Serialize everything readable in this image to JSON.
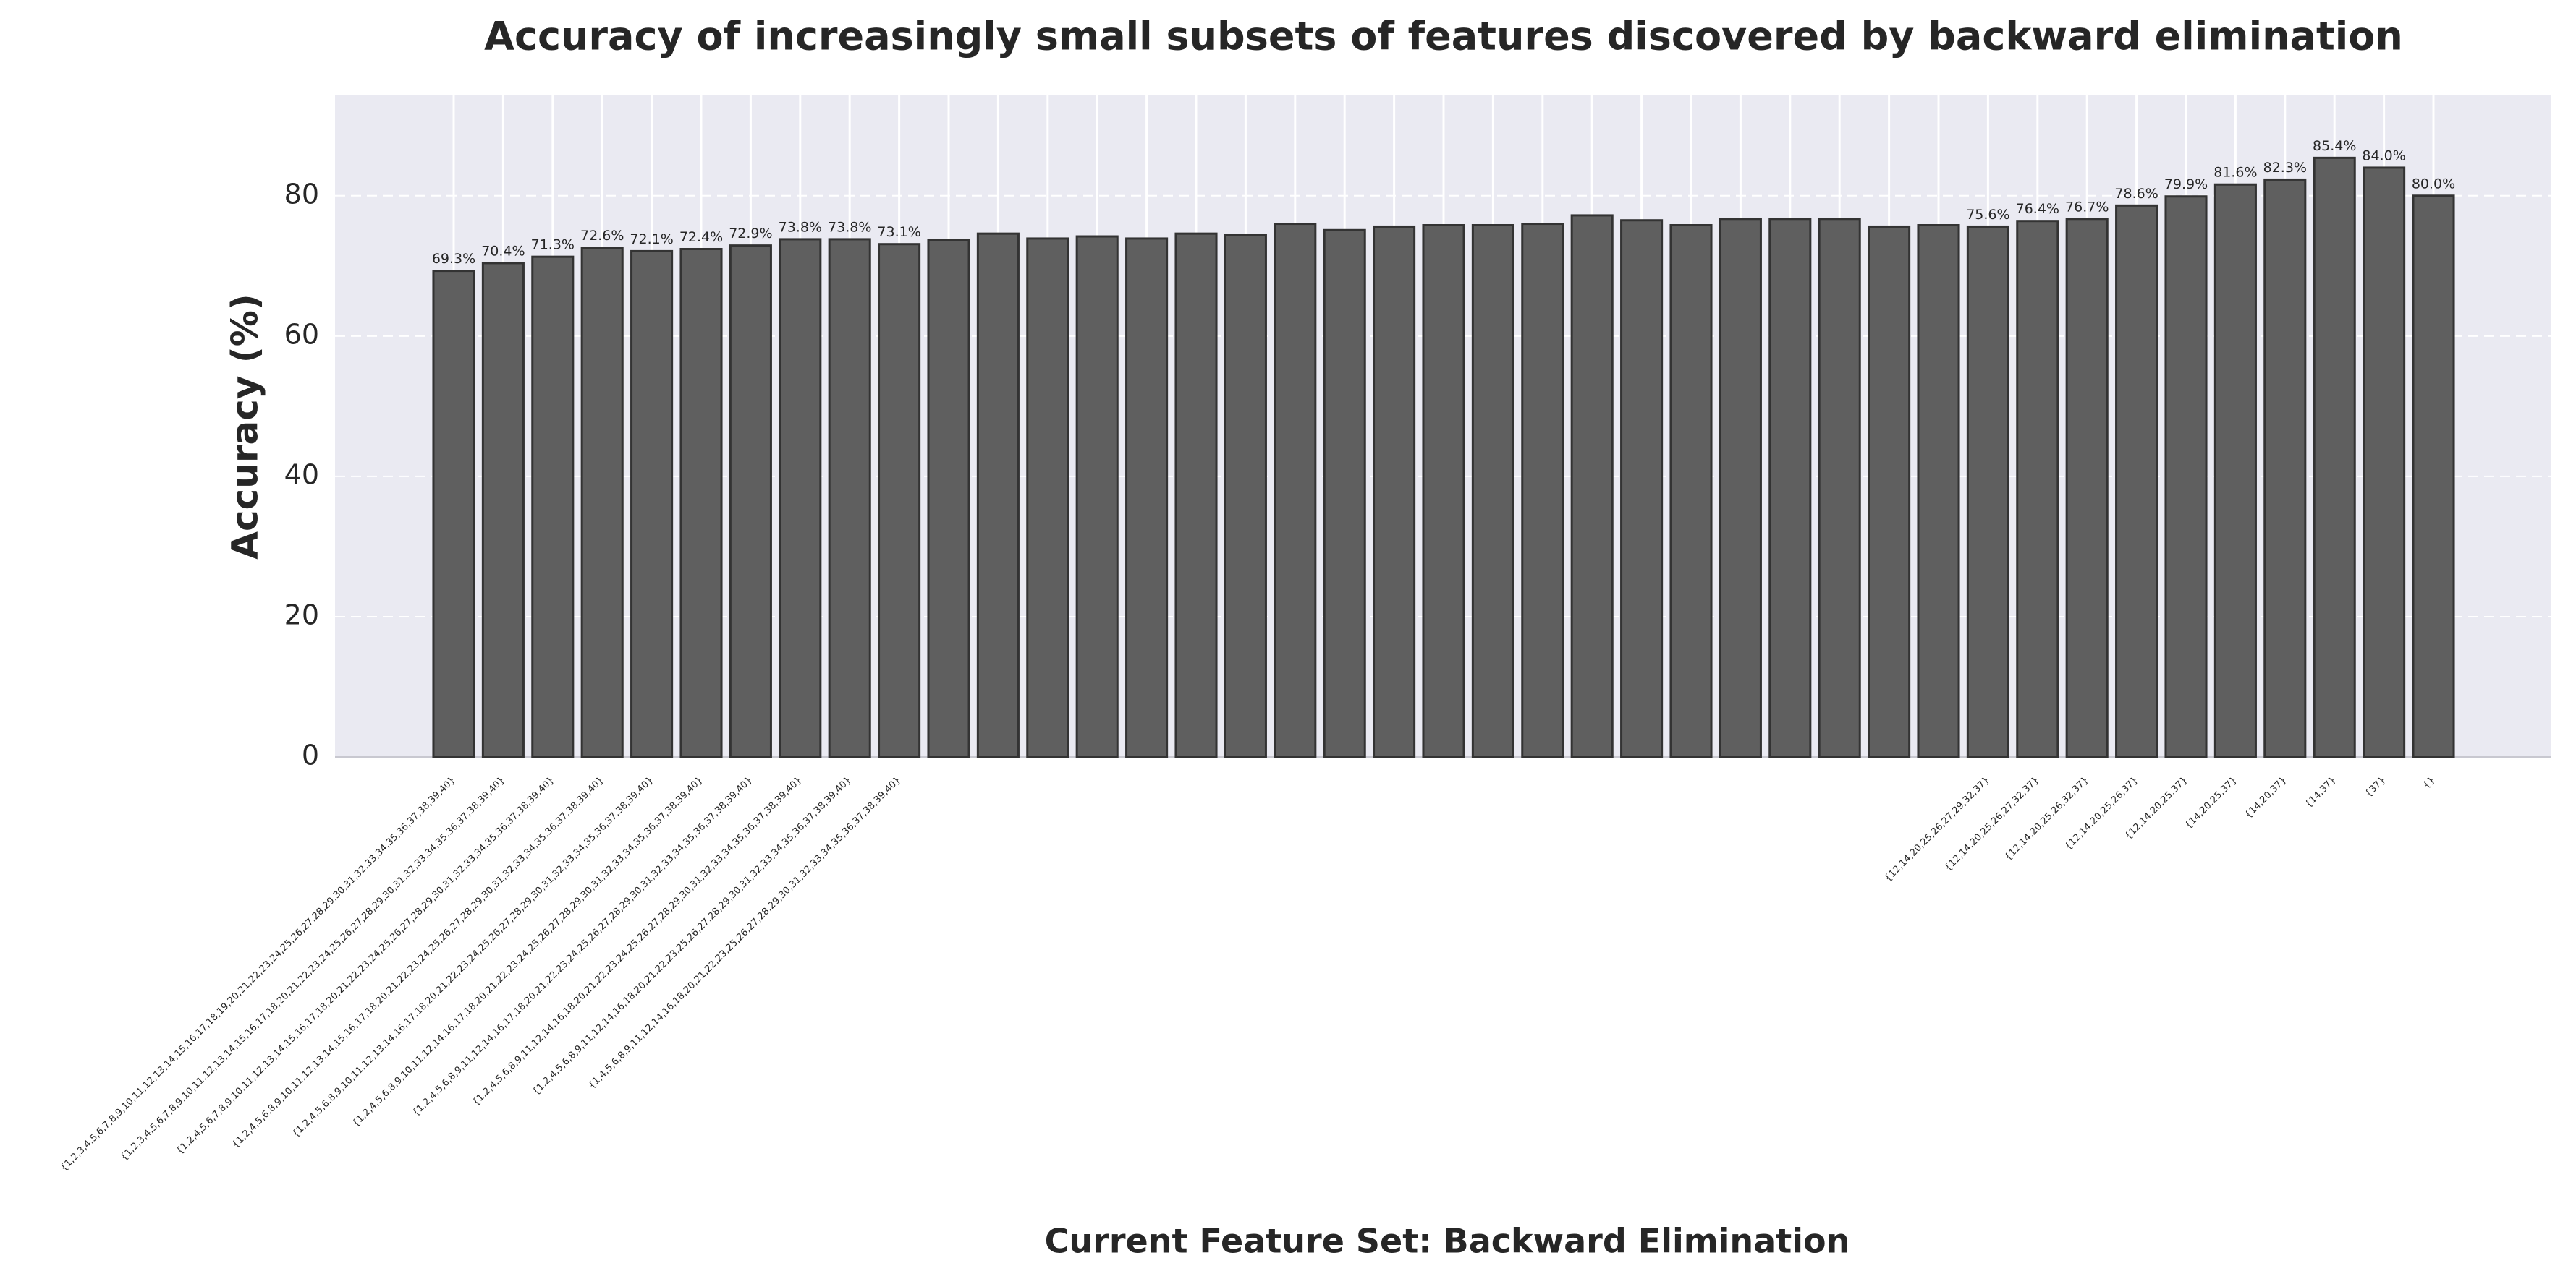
{
  "chart_data": {
    "type": "bar",
    "title": "Accuracy of increasingly small subsets of features discovered by backward elimination",
    "xlabel": "Current Feature Set: Backward Elimination",
    "ylabel": "Accuracy (%)",
    "categories": [
      "{1,2,3,4,5,6,7,8,9,10,11,12,13,14,15,16,17,18,19,20,21,22,23,24,25,26,27,28,29,30,31,32,33,34,35,36,37,38,39,40}",
      "{1,2,3,4,5,6,7,8,9,10,11,12,13,14,15,16,17,18,20,21,22,23,24,25,26,27,28,29,30,31,32,33,34,35,36,37,38,39,40}",
      "{1,2,4,5,6,7,8,9,10,11,12,13,14,15,16,17,18,20,21,22,23,24,25,26,27,28,29,30,31,32,33,34,35,36,37,38,39,40}",
      "{1,2,4,5,6,8,9,10,11,12,13,14,15,16,17,18,20,21,22,23,24,25,26,27,28,29,30,31,32,33,34,35,36,37,38,39,40}",
      "{1,2,4,5,6,8,9,10,11,12,13,14,16,17,18,20,21,22,23,24,25,26,27,28,29,30,31,32,33,34,35,36,37,38,39,40}",
      "{1,2,4,5,6,8,9,10,11,12,14,16,17,18,20,21,22,23,24,25,26,27,28,29,30,31,32,33,34,35,36,37,38,39,40}",
      "{1,2,4,5,6,8,9,11,12,14,16,17,18,20,21,22,23,24,25,26,27,28,29,30,31,32,33,34,35,36,37,38,39,40}",
      "{1,2,4,5,6,8,9,11,12,14,16,18,20,21,22,23,24,25,26,27,28,29,30,31,32,33,34,35,36,37,38,39,40}",
      "{1,2,4,5,6,8,9,11,12,14,16,18,20,21,22,23,25,26,27,28,29,30,31,32,33,34,35,36,37,38,39,40}",
      "{1,4,5,6,8,9,11,12,14,16,18,20,21,22,23,25,26,27,28,29,30,31,32,33,34,35,36,37,38,39,40}",
      null,
      null,
      null,
      null,
      null,
      null,
      null,
      null,
      null,
      null,
      null,
      null,
      null,
      null,
      null,
      null,
      null,
      null,
      null,
      null,
      null,
      "{12,14,20,25,26,27,29,32,37}",
      "{12,14,20,25,26,27,32,37}",
      "{12,14,20,25,26,32,37}",
      "{12,14,20,25,26,37}",
      "{12,14,20,25,37}",
      "{14,20,25,37}",
      "{14,20,37}",
      "{14,37}",
      "{37}",
      "{}"
    ],
    "values": [
      69.3,
      70.4,
      71.3,
      72.6,
      72.1,
      72.4,
      72.9,
      73.8,
      73.8,
      73.1,
      73.7,
      74.6,
      73.9,
      74.2,
      73.9,
      74.6,
      74.4,
      76.0,
      75.1,
      75.6,
      75.8,
      75.8,
      76.0,
      77.2,
      76.5,
      75.8,
      76.7,
      76.7,
      76.7,
      75.6,
      75.8,
      75.6,
      76.4,
      76.7,
      78.6,
      79.9,
      81.6,
      82.3,
      85.4,
      84.0,
      80.0
    ],
    "value_labels": [
      "69.3%",
      "70.4%",
      "71.3%",
      "72.6%",
      "72.1%",
      "72.4%",
      "72.9%",
      "73.8%",
      "73.8%",
      "73.1%",
      null,
      null,
      null,
      null,
      null,
      null,
      null,
      null,
      null,
      null,
      null,
      null,
      null,
      null,
      null,
      null,
      null,
      null,
      null,
      null,
      null,
      "75.6%",
      "76.4%",
      "76.7%",
      "78.6%",
      "79.9%",
      "81.6%",
      "82.3%",
      "85.4%",
      "84.0%",
      "80.0%"
    ],
    "color": "#5f5f5f",
    "ylim": [
      0,
      94.3
    ],
    "yticks": [
      0,
      20,
      40,
      60,
      80
    ],
    "grid": true
  }
}
